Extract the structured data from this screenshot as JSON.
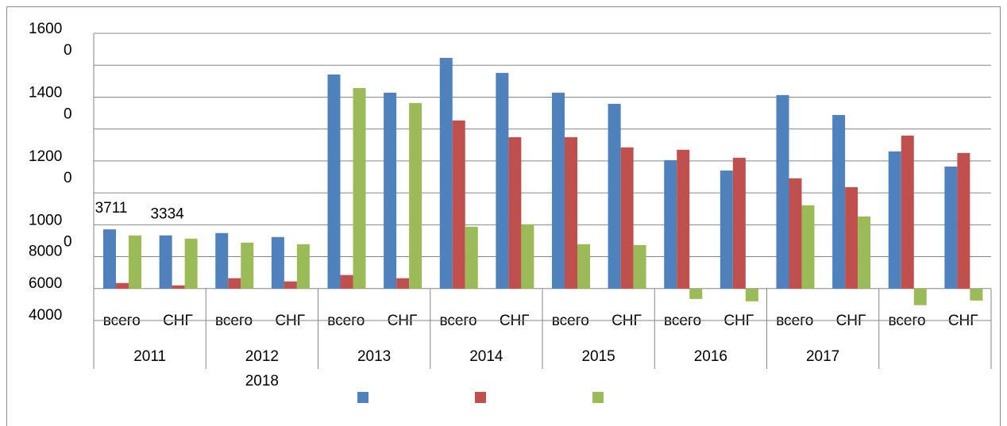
{
  "chart_data": {
    "type": "bar",
    "categories": [
      "всего",
      "СНГ",
      "всего",
      "СНГ",
      "всего",
      "СНГ",
      "всего",
      "СНГ",
      "всего",
      "СНГ",
      "всего",
      "СНГ",
      "всего",
      "СНГ",
      "всего",
      "СНГ"
    ],
    "groups": [
      "2011",
      "2012",
      "2013",
      "2014",
      "2015",
      "2016",
      "2017",
      null
    ],
    "extra_group_label": "2018",
    "series": [
      {
        "color": "#4f81bd",
        "values": [
          3711,
          3334,
          3480,
          3230,
          13420,
          12280,
          14460,
          13520,
          12280,
          11580,
          8050,
          7400,
          12130,
          10880,
          8600,
          7650
        ],
        "value_labels": [
          "3711",
          "3334",
          null,
          null,
          null,
          null,
          null,
          null,
          null,
          null,
          null,
          null,
          null,
          null,
          null,
          null
        ]
      },
      {
        "color": "#c0504d",
        "values": [
          350,
          200,
          650,
          450,
          850,
          650,
          10540,
          9490,
          9490,
          8850,
          8700,
          8200,
          6910,
          6360,
          9590,
          8500
        ]
      },
      {
        "color": "#9bbb59",
        "values": [
          3330,
          3130,
          2880,
          2780,
          12570,
          11630,
          3880,
          4030,
          2780,
          2730,
          -650,
          -800,
          5220,
          4520,
          -1040,
          -750
        ]
      }
    ],
    "ylim": [
      -2000,
      16000
    ],
    "yticks": [
      {
        "value": -2000,
        "label": "4000"
      },
      {
        "value": 0,
        "label": "6000"
      },
      2000,
      {
        "value": 2000,
        "label": "8000"
      },
      {
        "value": 4000,
        "label": "1000\n0"
      },
      6000,
      {
        "value": 8000,
        "label": "1200\n0"
      },
      10000,
      {
        "value": 12000,
        "label": "1400\n0"
      },
      14000,
      {
        "value": 16000,
        "label": "1600\n0"
      }
    ],
    "grid": true
  }
}
